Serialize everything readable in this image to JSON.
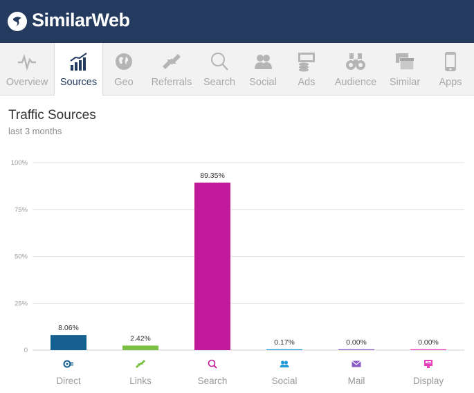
{
  "brand": {
    "name": "SimilarWeb"
  },
  "tabs": [
    {
      "label": "Overview",
      "icon": "pulse-icon",
      "active": false
    },
    {
      "label": "Sources",
      "icon": "bar-chart-icon",
      "active": true
    },
    {
      "label": "Geo",
      "icon": "globe-icon",
      "active": false
    },
    {
      "label": "Referrals",
      "icon": "arrows-icon",
      "active": false
    },
    {
      "label": "Search",
      "icon": "search-icon",
      "active": false
    },
    {
      "label": "Social",
      "icon": "people-icon",
      "active": false
    },
    {
      "label": "Ads",
      "icon": "ads-icon",
      "active": false
    },
    {
      "label": "Audience",
      "icon": "binoculars-icon",
      "active": false
    },
    {
      "label": "Similar",
      "icon": "windows-icon",
      "active": false
    },
    {
      "label": "Apps",
      "icon": "phone-icon",
      "active": false
    }
  ],
  "section": {
    "title": "Traffic Sources",
    "subtitle": "last 3 months"
  },
  "colors": {
    "header": "#243a5e",
    "direct": "#155f91",
    "links": "#7ac143",
    "search": "#c0199a",
    "social": "#1e9bd7",
    "mail": "#8a5cc6",
    "display": "#e53fbb"
  },
  "chart_data": {
    "type": "bar",
    "categories": [
      "Direct",
      "Links",
      "Search",
      "Social",
      "Mail",
      "Display"
    ],
    "values": [
      8.06,
      2.42,
      89.35,
      0.17,
      0.0,
      0.0
    ],
    "value_labels": [
      "8.06%",
      "2.42%",
      "89.35%",
      "0.17%",
      "0.00%",
      "0.00%"
    ],
    "category_icons": [
      "direct-icon",
      "links-icon",
      "search-icon",
      "social-icon",
      "mail-icon",
      "display-icon"
    ],
    "ylim": [
      0,
      100
    ],
    "yticks": [
      "0",
      "25%",
      "50%",
      "75%",
      "100%"
    ],
    "ytick_values": [
      0,
      25,
      50,
      75,
      100
    ],
    "grid": true,
    "legend": "none"
  }
}
